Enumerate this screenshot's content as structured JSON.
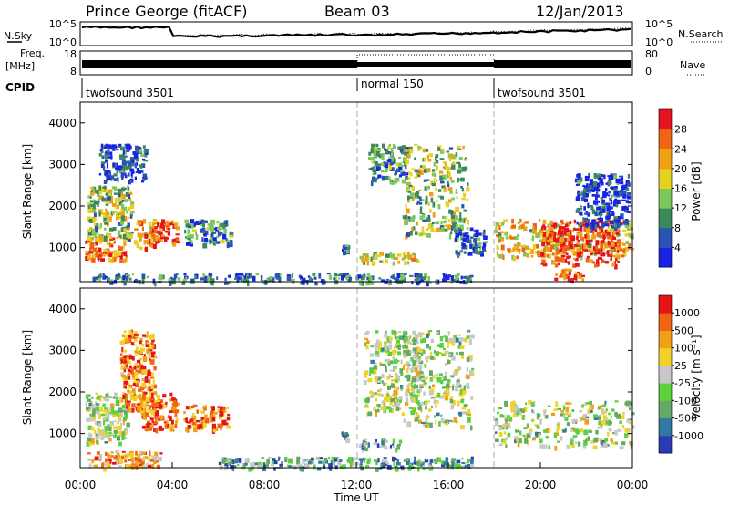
{
  "header": {
    "station": "Prince George (fitACF)",
    "beam": "Beam 03",
    "date": "12/Jan/2013"
  },
  "sky_panel": {
    "left_label": "N.Sky",
    "right_label": "N.Search",
    "left_ticks": [
      "10^5",
      "10^0"
    ],
    "right_ticks": [
      "10^5",
      "10^0"
    ]
  },
  "freq_panel": {
    "left_label_1": "Freq.",
    "left_label_2": "[MHz]",
    "right_label": "Nave",
    "left_ticks": [
      "18",
      "8"
    ],
    "right_ticks": [
      "80",
      "0"
    ]
  },
  "cpid": {
    "label": "CPID",
    "segments": [
      {
        "label": "twofsound 3501",
        "start_hour": 0,
        "end_hour": 12
      },
      {
        "label": "normal 150",
        "start_hour": 12,
        "end_hour": 18
      },
      {
        "label": "twofsound 3501",
        "start_hour": 18,
        "end_hour": 24
      }
    ]
  },
  "chart_data": [
    {
      "type": "heatmap",
      "title": "Power",
      "ylabel": "Slant Range [km]",
      "xlim_hours": [
        0,
        24
      ],
      "ylim": [
        180,
        4500
      ],
      "y_ticks": [
        "1000",
        "2000",
        "3000",
        "4000"
      ],
      "colorbar": {
        "label": "Power [dB]",
        "ticks": [
          "4",
          "8",
          "12",
          "16",
          "20",
          "24",
          "28"
        ],
        "colors": [
          "#1a22e6",
          "#2a54b4",
          "#3c8a5c",
          "#7cc85a",
          "#e6d21e",
          "#f0a014",
          "#f06414",
          "#e6141e"
        ]
      },
      "regions": [
        {
          "t": [
            0.2,
            2.0
          ],
          "r": [
            700,
            1300
          ],
          "level": 0.8
        },
        {
          "t": [
            0.3,
            2.2
          ],
          "r": [
            1200,
            2500
          ],
          "level": 0.45
        },
        {
          "t": [
            0.8,
            2.8
          ],
          "r": [
            2600,
            3500
          ],
          "level": 0.15
        },
        {
          "t": [
            2.3,
            3.2
          ],
          "r": [
            1000,
            1700
          ],
          "level": 0.7
        },
        {
          "t": [
            3.1,
            4.2
          ],
          "r": [
            1100,
            1700
          ],
          "level": 0.85
        },
        {
          "t": [
            4.5,
            6.5
          ],
          "r": [
            1100,
            1700
          ],
          "level": 0.3
        },
        {
          "t": [
            11.3,
            11.6
          ],
          "r": [
            900,
            1100
          ],
          "level": 0.2
        },
        {
          "t": [
            12.1,
            14.6
          ],
          "r": [
            650,
            900
          ],
          "level": 0.55
        },
        {
          "t": [
            12.5,
            14.2
          ],
          "r": [
            2600,
            3500
          ],
          "level": 0.3
        },
        {
          "t": [
            14.0,
            16.8
          ],
          "r": [
            1300,
            3500
          ],
          "level": 0.45
        },
        {
          "t": [
            16.2,
            17.6
          ],
          "r": [
            850,
            1500
          ],
          "level": 0.2
        },
        {
          "t": [
            18.0,
            24.0
          ],
          "r": [
            800,
            1700
          ],
          "level": 0.6
        },
        {
          "t": [
            20.0,
            23.4
          ],
          "r": [
            600,
            1700
          ],
          "level": 0.9
        },
        {
          "t": [
            20.6,
            21.8
          ],
          "r": [
            250,
            500
          ],
          "level": 0.9
        },
        {
          "t": [
            21.5,
            23.8
          ],
          "r": [
            1500,
            2800
          ],
          "level": 0.15
        },
        {
          "t": [
            0.5,
            17.0
          ],
          "r": [
            180,
            400
          ],
          "level": 0.25
        }
      ]
    },
    {
      "type": "heatmap",
      "title": "Velocity",
      "ylabel": "Slant Range [km]",
      "xlabel": "Time UT",
      "xlim_hours": [
        0,
        24
      ],
      "ylim": [
        180,
        4500
      ],
      "y_ticks": [
        "1000",
        "2000",
        "3000",
        "4000"
      ],
      "x_ticks": [
        "00:00",
        "04:00",
        "08:00",
        "12:00",
        "16:00",
        "20:00",
        "00:00"
      ],
      "colorbar": {
        "label": "Velocity [m s⁻¹]",
        "ticks": [
          "1000",
          "500",
          "100",
          "25",
          "-25",
          "-100",
          "-500",
          "-1000"
        ],
        "colors": [
          "#2a3cb4",
          "#3278a0",
          "#64aa64",
          "#5ad23c",
          "#c8c8c8",
          "#f0d228",
          "#f0a014",
          "#f06414",
          "#e61414"
        ]
      },
      "regions": [
        {
          "t": [
            0.2,
            2.0
          ],
          "r": [
            800,
            2000
          ],
          "level": 0.45
        },
        {
          "t": [
            1.7,
            3.2
          ],
          "r": [
            1600,
            3500
          ],
          "level": 0.8
        },
        {
          "t": [
            2.6,
            4.2
          ],
          "r": [
            1100,
            2000
          ],
          "level": 0.8
        },
        {
          "t": [
            4.4,
            6.4
          ],
          "r": [
            1100,
            1700
          ],
          "level": 0.8
        },
        {
          "t": [
            11.3,
            11.6
          ],
          "r": [
            900,
            1100
          ],
          "level": 0.3
        },
        {
          "t": [
            12.1,
            14.0
          ],
          "r": [
            650,
            900
          ],
          "level": 0.3
        },
        {
          "t": [
            12.3,
            14.8
          ],
          "r": [
            1500,
            3500
          ],
          "level": 0.45
        },
        {
          "t": [
            14.0,
            17.0
          ],
          "r": [
            1200,
            3500
          ],
          "level": 0.45
        },
        {
          "t": [
            18.0,
            24.0
          ],
          "r": [
            700,
            1800
          ],
          "level": 0.45
        },
        {
          "t": [
            6.0,
            17.0
          ],
          "r": [
            180,
            450
          ],
          "level": 0.3
        },
        {
          "t": [
            0.3,
            3.5
          ],
          "r": [
            180,
            600
          ],
          "level": 0.7
        }
      ]
    }
  ]
}
